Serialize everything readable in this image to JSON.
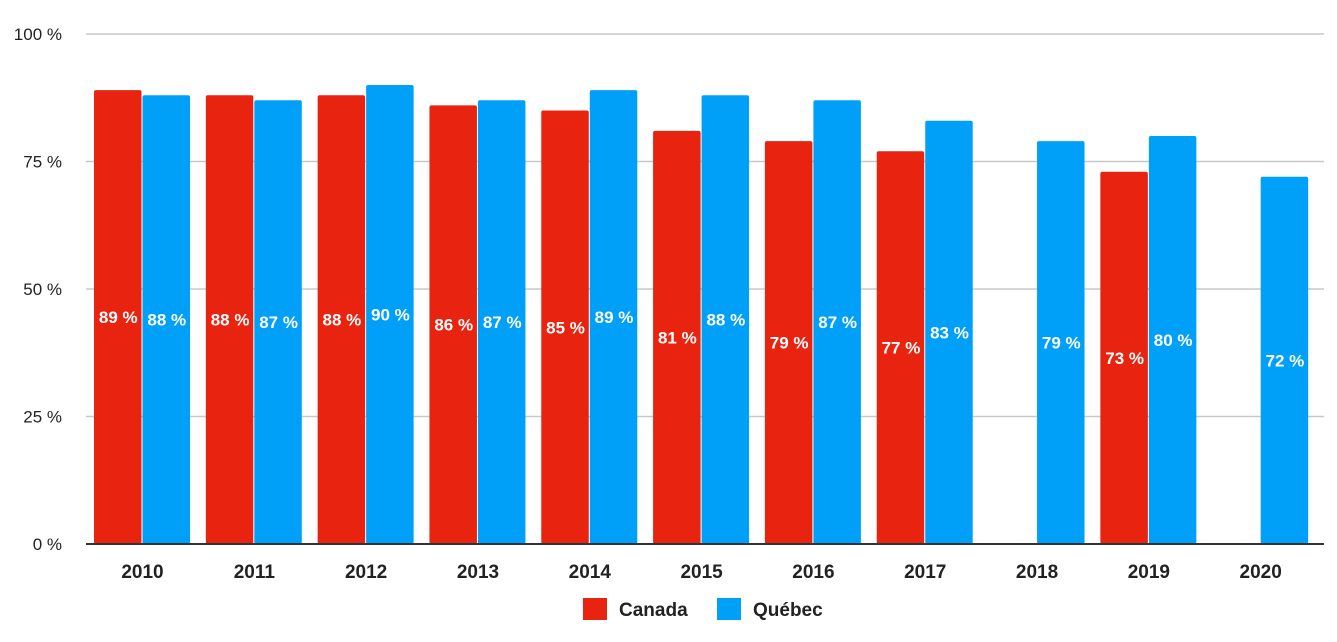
{
  "chart_data": {
    "type": "bar",
    "title": "",
    "xlabel": "",
    "ylabel": "",
    "ylim": [
      0,
      100
    ],
    "y_ticks": [
      "0 %",
      "25 %",
      "50 %",
      "75 %",
      "100 %"
    ],
    "y_tick_values": [
      0,
      25,
      50,
      75,
      100
    ],
    "grid": true,
    "legend_position": "bottom",
    "categories": [
      "2010",
      "2011",
      "2012",
      "2013",
      "2014",
      "2015",
      "2016",
      "2017",
      "2018",
      "2019",
      "2020"
    ],
    "series": [
      {
        "name": "Canada",
        "color": "#e8230f",
        "values": [
          89,
          88,
          88,
          86,
          85,
          81,
          79,
          77,
          null,
          73,
          null
        ],
        "labels": [
          "89 %",
          "88 %",
          "88 %",
          "86 %",
          "85 %",
          "81 %",
          "79 %",
          "77 %",
          null,
          "73 %",
          null
        ]
      },
      {
        "name": "Québec",
        "color": "#00a0f8",
        "values": [
          88,
          87,
          90,
          87,
          89,
          88,
          87,
          83,
          79,
          80,
          72
        ],
        "labels": [
          "88 %",
          "87 %",
          "90 %",
          "87 %",
          "89 %",
          "88 %",
          "87 %",
          "83 %",
          "79 %",
          "80 %",
          "72 %"
        ]
      }
    ]
  }
}
